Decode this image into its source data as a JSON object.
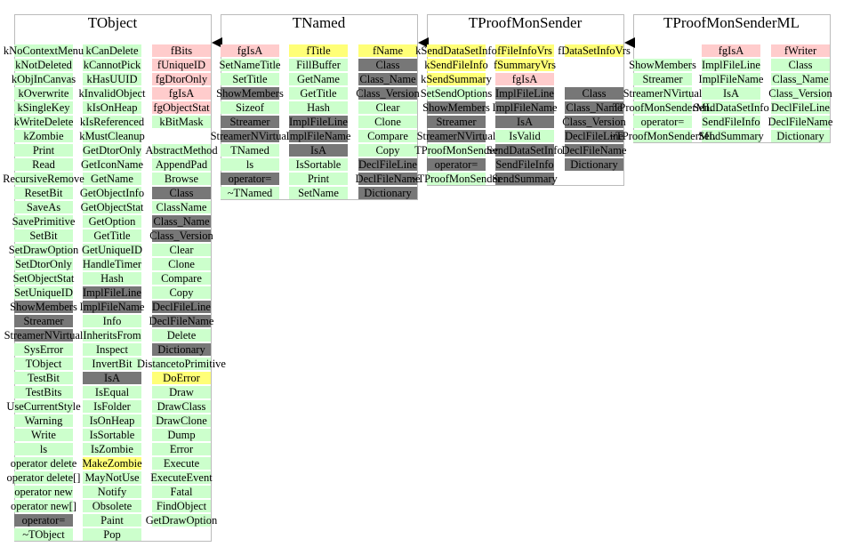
{
  "classes": [
    {
      "name": "TObject",
      "columns": [
        [
          {
            "text": "kNoContextMenu",
            "color": "#ccffcc"
          },
          {
            "text": "kNotDeleted",
            "color": "#ccffcc"
          },
          {
            "text": "kObjInCanvas",
            "color": "#ccffcc"
          },
          {
            "text": "kOverwrite",
            "color": "#ccffcc"
          },
          {
            "text": "kSingleKey",
            "color": "#ccffcc"
          },
          {
            "text": "kWriteDelete",
            "color": "#ccffcc"
          },
          {
            "text": "kZombie",
            "color": "#ccffcc"
          },
          {
            "text": "Print",
            "color": "#ccffcc"
          },
          {
            "text": "Read",
            "color": "#ccffcc"
          },
          {
            "text": "RecursiveRemove",
            "color": "#ccffcc"
          },
          {
            "text": "ResetBit",
            "color": "#ccffcc"
          },
          {
            "text": "SaveAs",
            "color": "#ccffcc"
          },
          {
            "text": "SavePrimitive",
            "color": "#ccffcc"
          },
          {
            "text": "SetBit",
            "color": "#ccffcc"
          },
          {
            "text": "SetDrawOption",
            "color": "#ccffcc"
          },
          {
            "text": "SetDtorOnly",
            "color": "#ccffcc"
          },
          {
            "text": "SetObjectStat",
            "color": "#ccffcc"
          },
          {
            "text": "SetUniqueID",
            "color": "#ccffcc"
          },
          {
            "text": "ShowMembers",
            "color": "#777777"
          },
          {
            "text": "Streamer",
            "color": "#777777"
          },
          {
            "text": "StreamerNVirtual",
            "color": "#777777"
          },
          {
            "text": "SysError",
            "color": "#ccffcc"
          },
          {
            "text": "TObject",
            "color": "#ccffcc"
          },
          {
            "text": "TestBit",
            "color": "#ccffcc"
          },
          {
            "text": "TestBits",
            "color": "#ccffcc"
          },
          {
            "text": "UseCurrentStyle",
            "color": "#ccffcc"
          },
          {
            "text": "Warning",
            "color": "#ccffcc"
          },
          {
            "text": "Write",
            "color": "#ccffcc"
          },
          {
            "text": "ls",
            "color": "#ccffcc"
          },
          {
            "text": "operator delete",
            "color": "#ccffcc"
          },
          {
            "text": "operator delete[]",
            "color": "#ccffcc"
          },
          {
            "text": "operator new",
            "color": "#ccffcc"
          },
          {
            "text": "operator new[]",
            "color": "#ccffcc"
          },
          {
            "text": "operator=",
            "color": "#777777"
          },
          {
            "text": "~TObject",
            "color": "#ccffcc"
          }
        ],
        [
          {
            "text": "kCanDelete",
            "color": "#ccffcc"
          },
          {
            "text": "kCannotPick",
            "color": "#ccffcc"
          },
          {
            "text": "kHasUUID",
            "color": "#ccffcc"
          },
          {
            "text": "kInvalidObject",
            "color": "#ccffcc"
          },
          {
            "text": "kIsOnHeap",
            "color": "#ccffcc"
          },
          {
            "text": "kIsReferenced",
            "color": "#ccffcc"
          },
          {
            "text": "kMustCleanup",
            "color": "#ccffcc"
          },
          {
            "text": "GetDtorOnly",
            "color": "#ccffcc"
          },
          {
            "text": "GetIconName",
            "color": "#ccffcc"
          },
          {
            "text": "GetName",
            "color": "#ccffcc"
          },
          {
            "text": "GetObjectInfo",
            "color": "#ccffcc"
          },
          {
            "text": "GetObjectStat",
            "color": "#ccffcc"
          },
          {
            "text": "GetOption",
            "color": "#ccffcc"
          },
          {
            "text": "GetTitle",
            "color": "#ccffcc"
          },
          {
            "text": "GetUniqueID",
            "color": "#ccffcc"
          },
          {
            "text": "HandleTimer",
            "color": "#ccffcc"
          },
          {
            "text": "Hash",
            "color": "#ccffcc"
          },
          {
            "text": "ImplFileLine",
            "color": "#777777"
          },
          {
            "text": "ImplFileName",
            "color": "#777777"
          },
          {
            "text": "Info",
            "color": "#ccffcc"
          },
          {
            "text": "InheritsFrom",
            "color": "#ccffcc"
          },
          {
            "text": "Inspect",
            "color": "#ccffcc"
          },
          {
            "text": "InvertBit",
            "color": "#ccffcc"
          },
          {
            "text": "IsA",
            "color": "#777777"
          },
          {
            "text": "IsEqual",
            "color": "#ccffcc"
          },
          {
            "text": "IsFolder",
            "color": "#ccffcc"
          },
          {
            "text": "IsOnHeap",
            "color": "#ccffcc"
          },
          {
            "text": "IsSortable",
            "color": "#ccffcc"
          },
          {
            "text": "IsZombie",
            "color": "#ccffcc"
          },
          {
            "text": "MakeZombie",
            "color": "#ffff77"
          },
          {
            "text": "MayNotUse",
            "color": "#ccffcc"
          },
          {
            "text": "Notify",
            "color": "#ccffcc"
          },
          {
            "text": "Obsolete",
            "color": "#ccffcc"
          },
          {
            "text": "Paint",
            "color": "#ccffcc"
          },
          {
            "text": "Pop",
            "color": "#ccffcc"
          }
        ],
        [
          {
            "text": "fBits",
            "color": "#ffcccc"
          },
          {
            "text": "fUniqueID",
            "color": "#ffcccc"
          },
          {
            "text": "fgDtorOnly",
            "color": "#ffcccc"
          },
          {
            "text": "fgIsA",
            "color": "#ffcccc"
          },
          {
            "text": "fgObjectStat",
            "color": "#ffcccc"
          },
          {
            "text": "kBitMask",
            "color": "#ccffcc"
          },
          null,
          {
            "text": "AbstractMethod",
            "color": "#ccffcc"
          },
          {
            "text": "AppendPad",
            "color": "#ccffcc"
          },
          {
            "text": "Browse",
            "color": "#ccffcc"
          },
          {
            "text": "Class",
            "color": "#777777"
          },
          {
            "text": "ClassName",
            "color": "#ccffcc"
          },
          {
            "text": "Class_Name",
            "color": "#777777"
          },
          {
            "text": "Class_Version",
            "color": "#777777"
          },
          {
            "text": "Clear",
            "color": "#ccffcc"
          },
          {
            "text": "Clone",
            "color": "#ccffcc"
          },
          {
            "text": "Compare",
            "color": "#ccffcc"
          },
          {
            "text": "Copy",
            "color": "#ccffcc"
          },
          {
            "text": "DeclFileLine",
            "color": "#777777"
          },
          {
            "text": "DeclFileName",
            "color": "#777777"
          },
          {
            "text": "Delete",
            "color": "#ccffcc"
          },
          {
            "text": "Dictionary",
            "color": "#777777"
          },
          {
            "text": "DistancetoPrimitive",
            "color": "#ccffcc"
          },
          {
            "text": "DoError",
            "color": "#ffff77"
          },
          {
            "text": "Draw",
            "color": "#ccffcc"
          },
          {
            "text": "DrawClass",
            "color": "#ccffcc"
          },
          {
            "text": "DrawClone",
            "color": "#ccffcc"
          },
          {
            "text": "Dump",
            "color": "#ccffcc"
          },
          {
            "text": "Error",
            "color": "#ccffcc"
          },
          {
            "text": "Execute",
            "color": "#ccffcc"
          },
          {
            "text": "ExecuteEvent",
            "color": "#ccffcc"
          },
          {
            "text": "Fatal",
            "color": "#ccffcc"
          },
          {
            "text": "FindObject",
            "color": "#ccffcc"
          },
          {
            "text": "GetDrawOption",
            "color": "#ccffcc"
          }
        ]
      ]
    },
    {
      "name": "TNamed",
      "columns": [
        [
          {
            "text": "fgIsA",
            "color": "#ffcccc"
          },
          {
            "text": "SetNameTitle",
            "color": "#ccffcc"
          },
          {
            "text": "SetTitle",
            "color": "#ccffcc"
          },
          {
            "text": "ShowMembers",
            "color": "#777777"
          },
          {
            "text": "Sizeof",
            "color": "#ccffcc"
          },
          {
            "text": "Streamer",
            "color": "#777777"
          },
          {
            "text": "StreamerNVirtual",
            "color": "#777777"
          },
          {
            "text": "TNamed",
            "color": "#ccffcc"
          },
          {
            "text": "ls",
            "color": "#ccffcc"
          },
          {
            "text": "operator=",
            "color": "#777777"
          },
          {
            "text": "~TNamed",
            "color": "#ccffcc"
          }
        ],
        [
          {
            "text": "fTitle",
            "color": "#ffff77"
          },
          {
            "text": "FillBuffer",
            "color": "#ccffcc"
          },
          {
            "text": "GetName",
            "color": "#ccffcc"
          },
          {
            "text": "GetTitle",
            "color": "#ccffcc"
          },
          {
            "text": "Hash",
            "color": "#ccffcc"
          },
          {
            "text": "ImplFileLine",
            "color": "#777777"
          },
          {
            "text": "ImplFileName",
            "color": "#777777"
          },
          {
            "text": "IsA",
            "color": "#777777"
          },
          {
            "text": "IsSortable",
            "color": "#ccffcc"
          },
          {
            "text": "Print",
            "color": "#ccffcc"
          },
          {
            "text": "SetName",
            "color": "#ccffcc"
          }
        ],
        [
          {
            "text": "fName",
            "color": "#ffff77"
          },
          {
            "text": "Class",
            "color": "#777777"
          },
          {
            "text": "Class_Name",
            "color": "#777777"
          },
          {
            "text": "Class_Version",
            "color": "#777777"
          },
          {
            "text": "Clear",
            "color": "#ccffcc"
          },
          {
            "text": "Clone",
            "color": "#ccffcc"
          },
          {
            "text": "Compare",
            "color": "#ccffcc"
          },
          {
            "text": "Copy",
            "color": "#ccffcc"
          },
          {
            "text": "DeclFileLine",
            "color": "#777777"
          },
          {
            "text": "DeclFileName",
            "color": "#777777"
          },
          {
            "text": "Dictionary",
            "color": "#777777"
          }
        ]
      ]
    },
    {
      "name": "TProofMonSender",
      "columns": [
        [
          {
            "text": "kSendDataSetInfo",
            "color": "#ffff77"
          },
          {
            "text": "kSendFileInfo",
            "color": "#ffff77"
          },
          {
            "text": "kSendSummary",
            "color": "#ffff77"
          },
          {
            "text": "SetSendOptions",
            "color": "#ccffcc"
          },
          {
            "text": "ShowMembers",
            "color": "#777777"
          },
          {
            "text": "Streamer",
            "color": "#777777"
          },
          {
            "text": "StreamerNVirtual",
            "color": "#777777"
          },
          {
            "text": "TProofMonSender",
            "color": "#ccffcc"
          },
          {
            "text": "operator=",
            "color": "#777777"
          },
          {
            "text": "~TProofMonSender",
            "color": "#ccffcc"
          }
        ],
        [
          {
            "text": "fFileInfoVrs",
            "color": "#ffff77"
          },
          {
            "text": "fSummaryVrs",
            "color": "#ffff77"
          },
          {
            "text": "fgIsA",
            "color": "#ffcccc"
          },
          {
            "text": "ImplFileLine",
            "color": "#777777"
          },
          {
            "text": "ImplFileName",
            "color": "#777777"
          },
          {
            "text": "IsA",
            "color": "#777777"
          },
          {
            "text": "IsValid",
            "color": "#ccffcc"
          },
          {
            "text": "SendDataSetInfo",
            "color": "#777777"
          },
          {
            "text": "SendFileInfo",
            "color": "#777777"
          },
          {
            "text": "SendSummary",
            "color": "#777777"
          }
        ],
        [
          {
            "text": "fDataSetInfoVrs",
            "color": "#ffff77"
          },
          null,
          null,
          {
            "text": "Class",
            "color": "#777777"
          },
          {
            "text": "Class_Name",
            "color": "#777777"
          },
          {
            "text": "Class_Version",
            "color": "#777777"
          },
          {
            "text": "DeclFileLine",
            "color": "#777777"
          },
          {
            "text": "DeclFileName",
            "color": "#777777"
          },
          {
            "text": "Dictionary",
            "color": "#777777"
          }
        ]
      ]
    },
    {
      "name": "TProofMonSenderML",
      "columns": [
        [
          null,
          {
            "text": "ShowMembers",
            "color": "#ccffcc"
          },
          {
            "text": "Streamer",
            "color": "#ccffcc"
          },
          {
            "text": "StreamerNVirtual",
            "color": "#ccffcc"
          },
          {
            "text": "TProofMonSenderML",
            "color": "#ccffcc"
          },
          {
            "text": "operator=",
            "color": "#ccffcc"
          },
          {
            "text": "~TProofMonSenderML",
            "color": "#ccffcc"
          }
        ],
        [
          {
            "text": "fgIsA",
            "color": "#ffcccc"
          },
          {
            "text": "ImplFileLine",
            "color": "#ccffcc"
          },
          {
            "text": "ImplFileName",
            "color": "#ccffcc"
          },
          {
            "text": "IsA",
            "color": "#ccffcc"
          },
          {
            "text": "SendDataSetInfo",
            "color": "#ccffcc"
          },
          {
            "text": "SendFileInfo",
            "color": "#ccffcc"
          },
          {
            "text": "SendSummary",
            "color": "#ccffcc"
          }
        ],
        [
          {
            "text": "fWriter",
            "color": "#ffcccc"
          },
          {
            "text": "Class",
            "color": "#ccffcc"
          },
          {
            "text": "Class_Name",
            "color": "#ccffcc"
          },
          {
            "text": "Class_Version",
            "color": "#ccffcc"
          },
          {
            "text": "DeclFileLine",
            "color": "#ccffcc"
          },
          {
            "text": "DeclFileName",
            "color": "#ccffcc"
          },
          {
            "text": "Dictionary",
            "color": "#ccffcc"
          }
        ]
      ]
    }
  ]
}
